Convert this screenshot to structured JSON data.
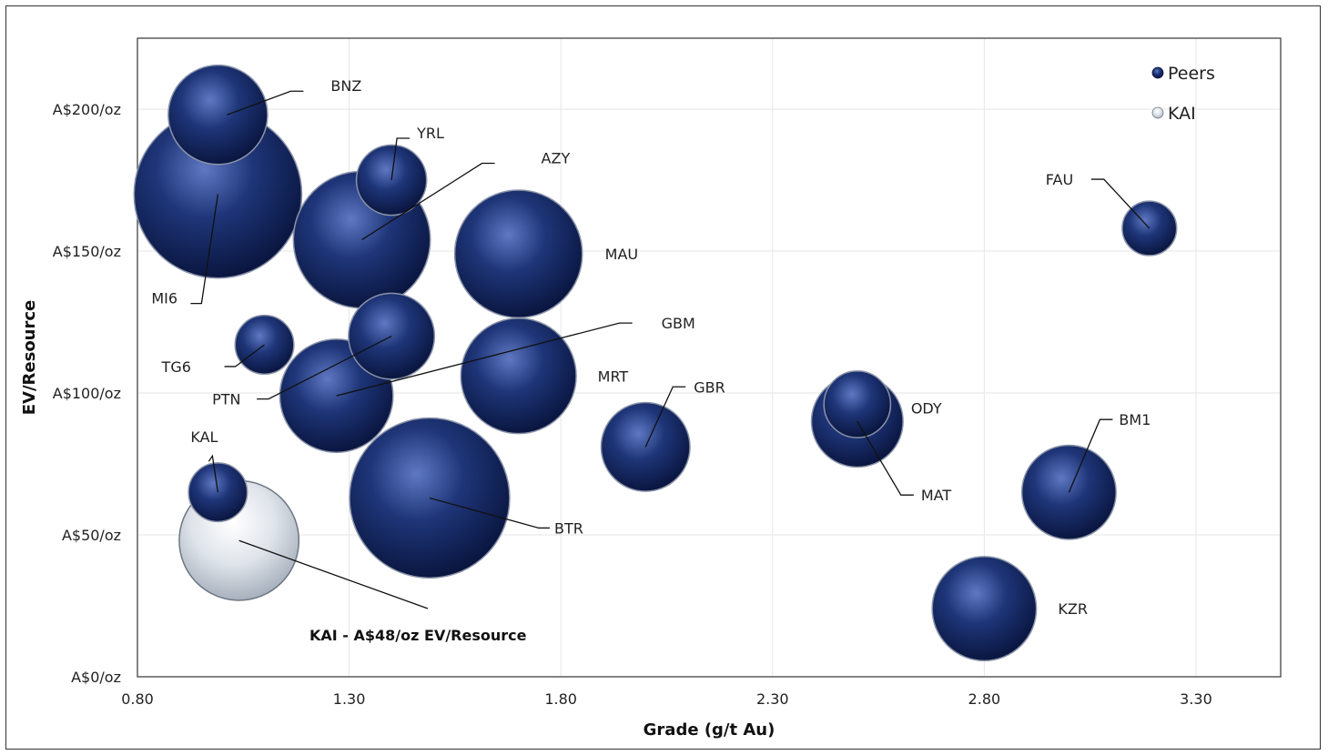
{
  "chart_data": {
    "type": "scatter",
    "subtype": "bubble",
    "title": "",
    "xlabel": "Grade (g/t Au)",
    "ylabel": "EV/Resource",
    "xlim": [
      0.8,
      3.5
    ],
    "ylim": [
      0,
      225
    ],
    "x_ticks": [
      0.8,
      1.3,
      1.8,
      2.3,
      2.8,
      3.3
    ],
    "x_tick_labels": [
      "0.80",
      "1.30",
      "1.80",
      "2.30",
      "2.80",
      "3.30"
    ],
    "y_ticks": [
      0,
      50,
      100,
      150,
      200
    ],
    "y_tick_labels": [
      "A$0/oz",
      "A$50/oz",
      "A$100/oz",
      "A$150/oz",
      "A$200/oz"
    ],
    "grid": true,
    "legend": {
      "placement": "top-right",
      "entries": [
        "Peers",
        "KAI"
      ]
    },
    "colors": {
      "Peers": "#1b2d66",
      "KAI": "#d7dde4"
    },
    "annotation": "KAI - A$48/oz EV/Resource",
    "series": [
      {
        "name": "Peers",
        "points": [
          {
            "label": "BNZ",
            "x": 0.99,
            "y": 198,
            "size": 20
          },
          {
            "label": "MI6",
            "x": 0.99,
            "y": 170,
            "size": 57
          },
          {
            "label": "YRL",
            "x": 1.4,
            "y": 175,
            "size": 10
          },
          {
            "label": "AZY",
            "x": 1.33,
            "y": 154,
            "size": 38
          },
          {
            "label": "MAU",
            "x": 1.7,
            "y": 149,
            "size": 33
          },
          {
            "label": "TG6",
            "x": 1.1,
            "y": 117,
            "size": 7
          },
          {
            "label": "GBM",
            "x": 1.27,
            "y": 99,
            "size": 26
          },
          {
            "label": "PTN",
            "x": 1.4,
            "y": 120,
            "size": 15
          },
          {
            "label": "MRT",
            "x": 1.7,
            "y": 106,
            "size": 27
          },
          {
            "label": "BTR",
            "x": 1.49,
            "y": 63,
            "size": 52
          },
          {
            "label": "GBR",
            "x": 2.0,
            "y": 81,
            "size": 16
          },
          {
            "label": "ODY",
            "x": 2.5,
            "y": 96,
            "size": 9
          },
          {
            "label": "MAT",
            "x": 2.5,
            "y": 90,
            "size": 17
          },
          {
            "label": "BM1",
            "x": 3.0,
            "y": 65,
            "size": 18
          },
          {
            "label": "KAL",
            "x": 0.99,
            "y": 65,
            "size": 7
          },
          {
            "label": "FAU",
            "x": 3.19,
            "y": 158,
            "size": 6
          },
          {
            "label": "KZR",
            "x": 2.8,
            "y": 24,
            "size": 22
          }
        ]
      },
      {
        "name": "KAI",
        "points": [
          {
            "label": "KAI",
            "x": 1.04,
            "y": 48,
            "size": 29
          }
        ]
      }
    ]
  }
}
